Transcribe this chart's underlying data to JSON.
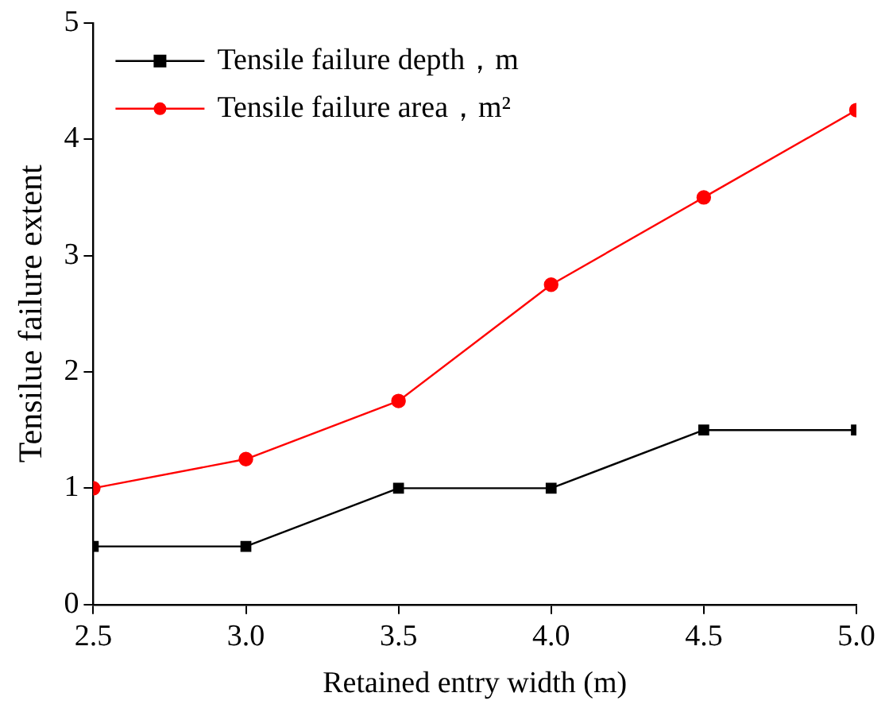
{
  "chart_data": {
    "type": "line",
    "xlabel": "Retained entry width (m)",
    "ylabel": "Tensilue failure extent",
    "x": [
      2.5,
      3.0,
      3.5,
      4.0,
      4.5,
      5.0
    ],
    "series": [
      {
        "name": "Tensile failure depth，m",
        "color": "#000000",
        "marker": "square",
        "values": [
          0.5,
          0.5,
          1,
          1,
          1.5,
          1.5
        ]
      },
      {
        "name": "Tensile failure area，m²",
        "color": "#ff0000",
        "marker": "circle",
        "values": [
          1,
          1.25,
          1.75,
          2.75,
          3.5,
          4.25
        ]
      }
    ],
    "xlim": [
      2.5,
      5.0
    ],
    "xticks": [
      {
        "value": 2.5,
        "label": "2.5"
      },
      {
        "value": 3.0,
        "label": "3.0"
      },
      {
        "value": 3.5,
        "label": "3.5"
      },
      {
        "value": 4.0,
        "label": "4.0"
      },
      {
        "value": 4.5,
        "label": "4.5"
      },
      {
        "value": 5.0,
        "label": "5.0"
      }
    ],
    "ylim": [
      0,
      5
    ],
    "yticks": [
      0,
      1,
      2,
      3,
      4,
      5
    ],
    "legend": "top left",
    "grid": false,
    "line_style": "solid"
  }
}
